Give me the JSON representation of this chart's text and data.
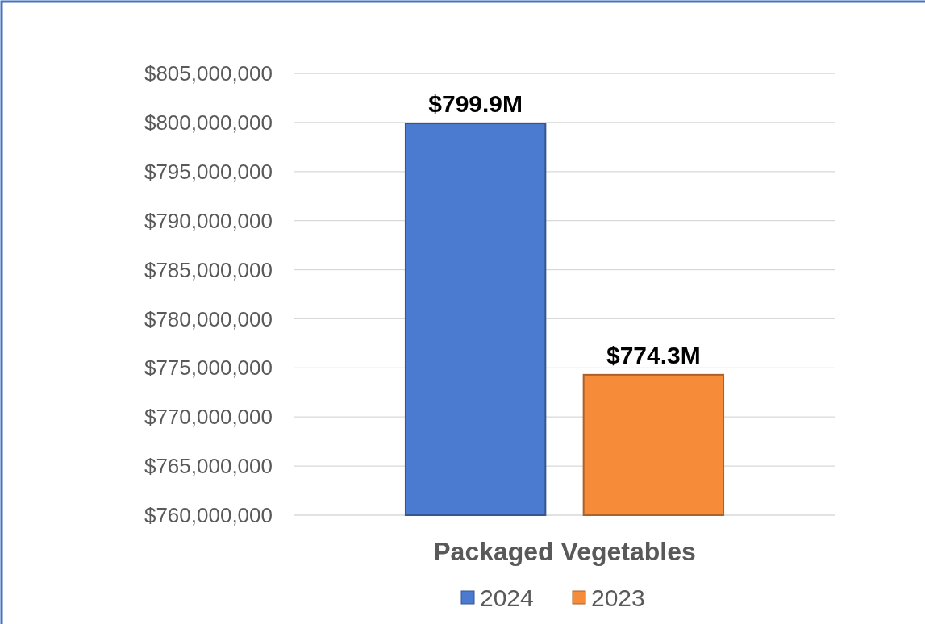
{
  "chart_data": {
    "type": "bar",
    "categories": [
      "Packaged Vegetables"
    ],
    "series": [
      {
        "name": "2024",
        "color": "#4a7bd0",
        "values": [
          799900000
        ],
        "value_labels": [
          "$799.9M"
        ]
      },
      {
        "name": "2023",
        "color": "#f68b3a",
        "values": [
          774300000
        ],
        "value_labels": [
          "$774.3M"
        ]
      }
    ],
    "ylim": [
      760000000,
      805000000
    ],
    "yticks": [
      {
        "value": 760000000,
        "label": "$760,000,000"
      },
      {
        "value": 765000000,
        "label": "$765,000,000"
      },
      {
        "value": 770000000,
        "label": "$770,000,000"
      },
      {
        "value": 775000000,
        "label": "$775,000,000"
      },
      {
        "value": 780000000,
        "label": "$780,000,000"
      },
      {
        "value": 785000000,
        "label": "$785,000,000"
      },
      {
        "value": 790000000,
        "label": "$790,000,000"
      },
      {
        "value": 795000000,
        "label": "$795,000,000"
      },
      {
        "value": 800000000,
        "label": "$800,000,000"
      },
      {
        "value": 805000000,
        "label": "$805,000,000"
      }
    ],
    "grid": "y",
    "legend": "bottom"
  }
}
